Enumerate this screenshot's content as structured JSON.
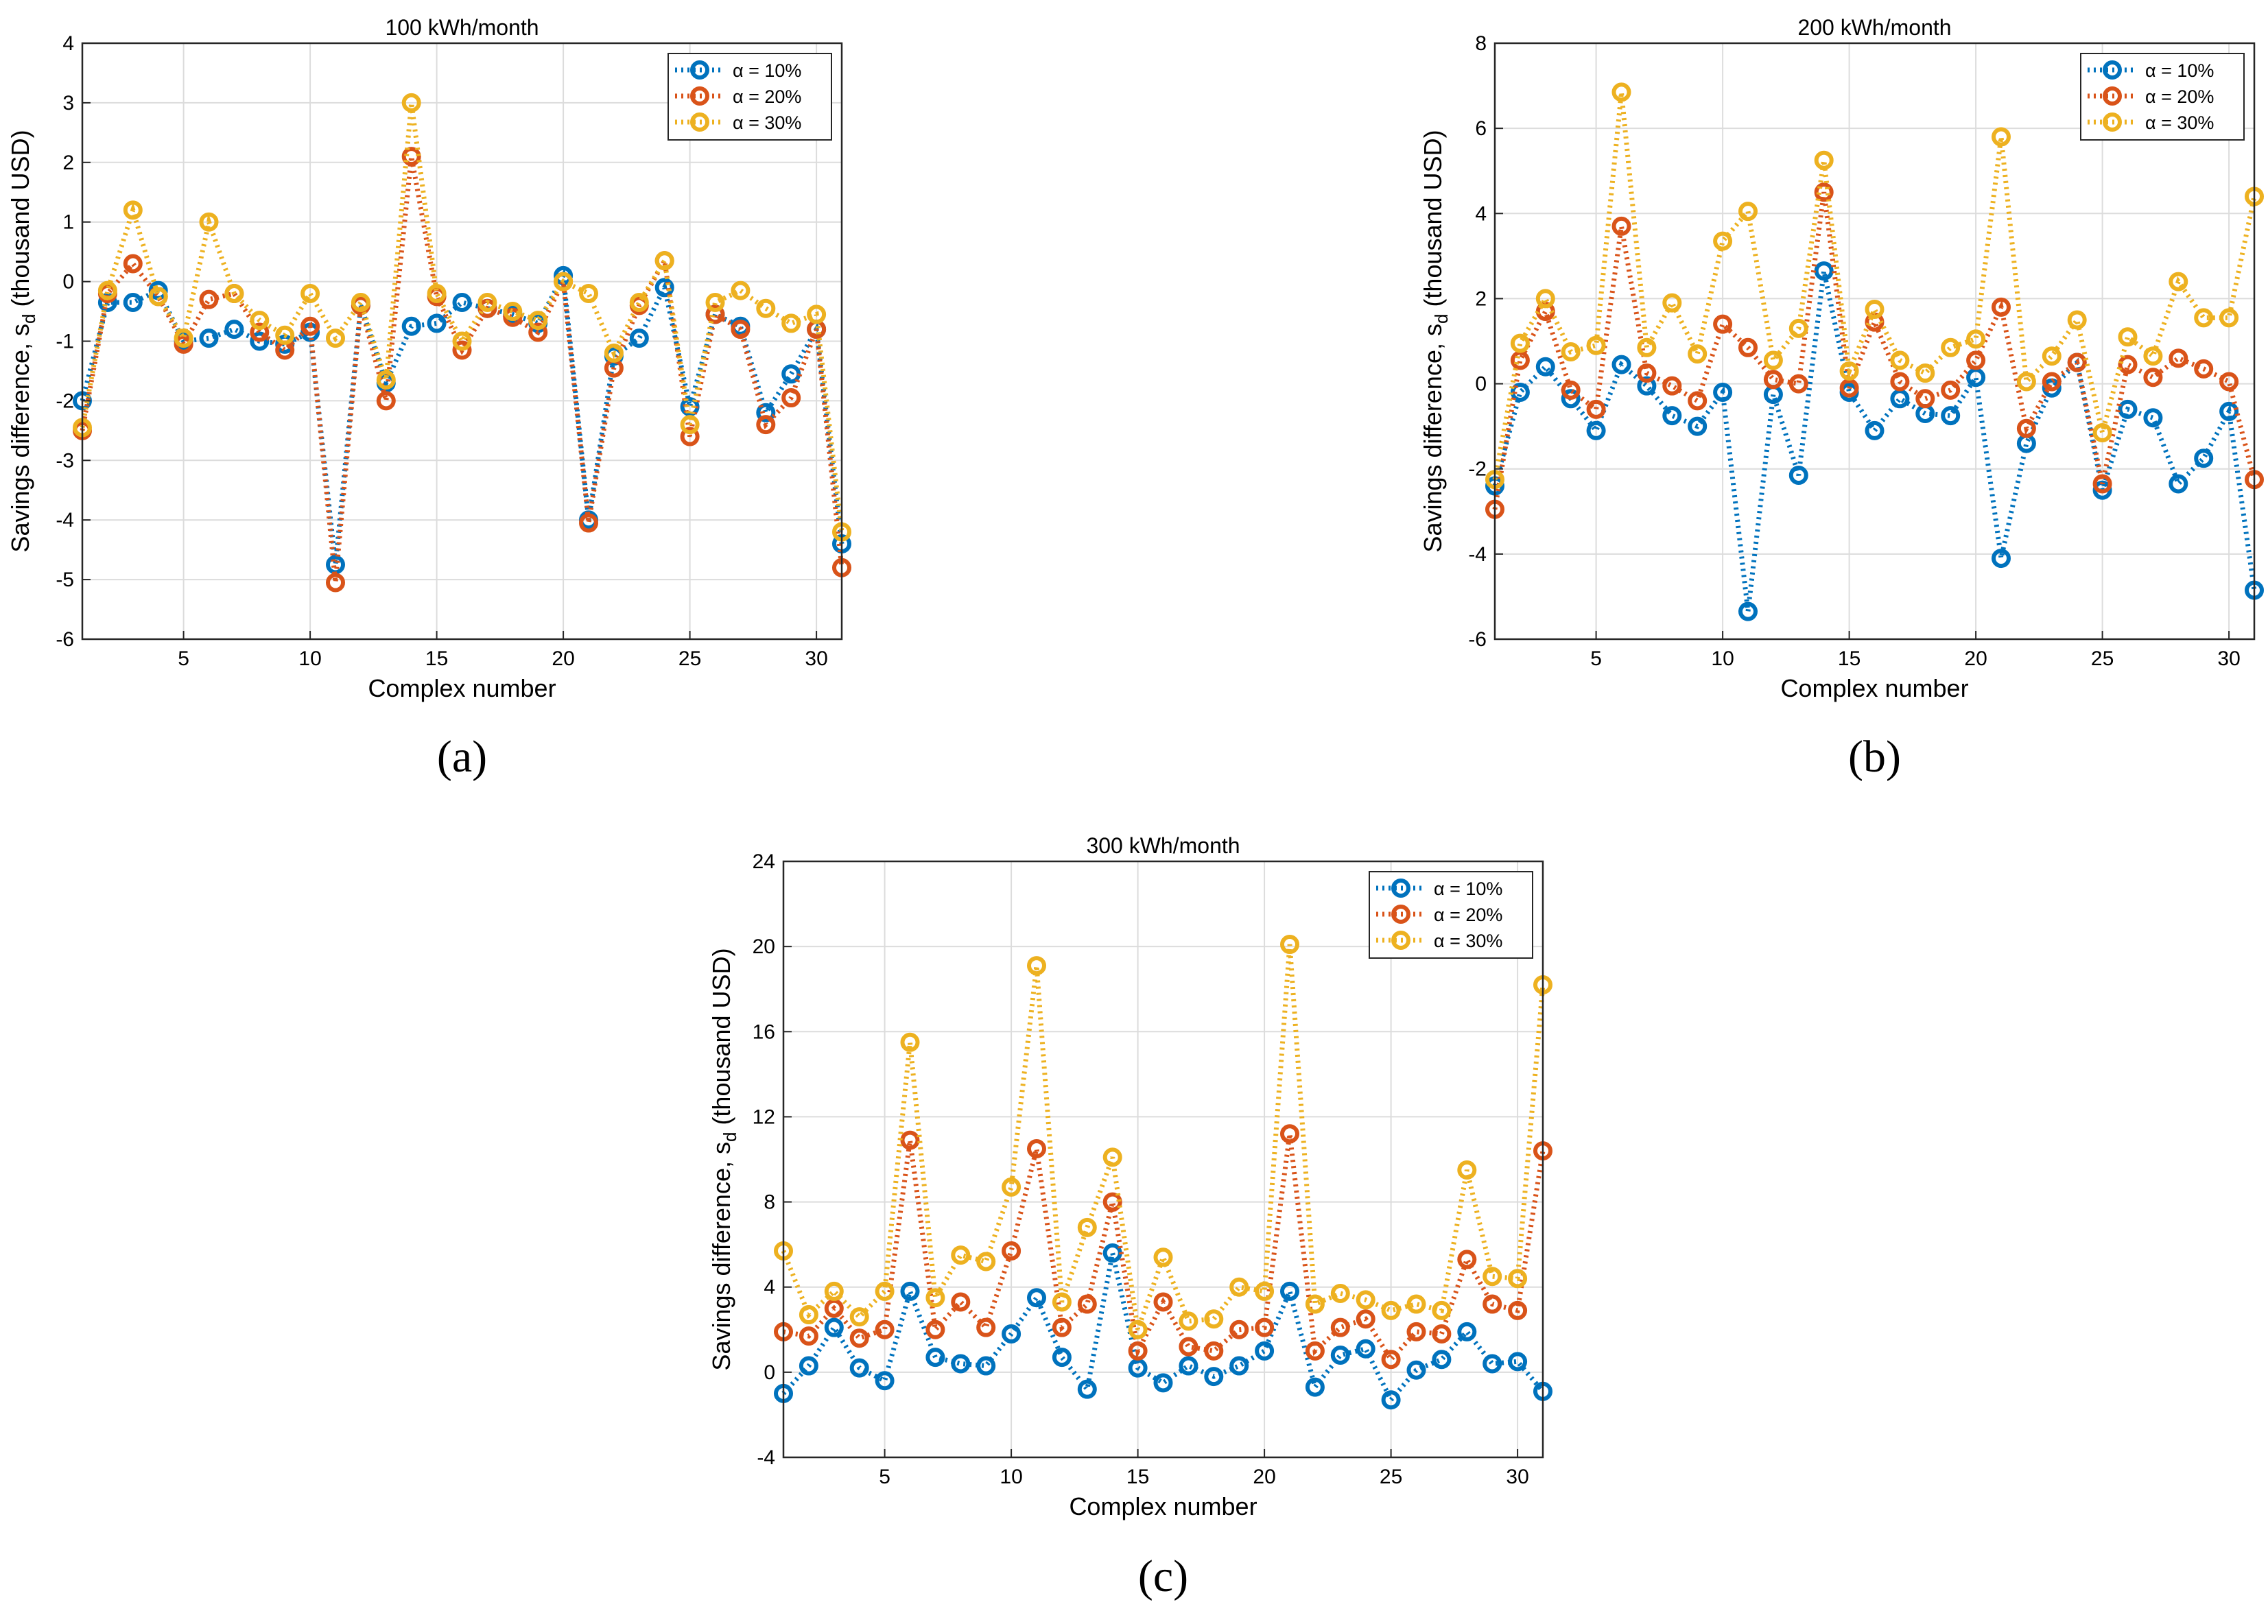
{
  "colors": {
    "a10": "#0072BD",
    "a20": "#D95319",
    "a30": "#EDB120",
    "grid": "#DCDCDC"
  },
  "chart_data": [
    {
      "type": "line",
      "panel_label": "(a)",
      "title": "100 kWh/month",
      "xlabel": "Complex number",
      "ylabel": "Savings difference, s",
      "ylabel_sub": "d",
      "ylabel_suffix": " (thousand USD)",
      "xlim": [
        1,
        31
      ],
      "ylim": [
        -6,
        4
      ],
      "xticks": [
        5,
        10,
        15,
        20,
        25,
        30
      ],
      "yticks": [
        -6,
        -5,
        -4,
        -3,
        -2,
        -1,
        0,
        1,
        2,
        3,
        4
      ],
      "grid": true,
      "legend": "top-right",
      "x": [
        1,
        2,
        3,
        4,
        5,
        6,
        7,
        8,
        9,
        10,
        11,
        12,
        13,
        14,
        15,
        16,
        17,
        18,
        19,
        20,
        21,
        22,
        23,
        24,
        25,
        26,
        27,
        28,
        29,
        30,
        31
      ],
      "series": [
        {
          "name": "α = 10%",
          "color_key": "a10",
          "values": [
            -2.0,
            -0.35,
            -0.35,
            -0.15,
            -1.0,
            -0.95,
            -0.8,
            -1.0,
            -1.05,
            -0.85,
            -4.75,
            -0.4,
            -1.7,
            -0.75,
            -0.7,
            -0.35,
            -0.45,
            -0.55,
            -0.7,
            0.1,
            -4.0,
            -1.25,
            -0.95,
            -0.1,
            -2.1,
            -0.55,
            -0.75,
            -2.2,
            -1.55,
            -0.8,
            -4.4
          ]
        },
        {
          "name": "α = 20%",
          "color_key": "a20",
          "values": [
            -2.5,
            -0.2,
            0.3,
            -0.25,
            -1.05,
            -0.3,
            -0.2,
            -0.85,
            -1.15,
            -0.75,
            -5.05,
            -0.4,
            -2.0,
            2.1,
            -0.25,
            -1.15,
            -0.45,
            -0.6,
            -0.85,
            0.0,
            -4.05,
            -1.45,
            -0.4,
            0.35,
            -2.6,
            -0.55,
            -0.8,
            -2.4,
            -1.95,
            -0.8,
            -4.8
          ]
        },
        {
          "name": "α = 30%",
          "color_key": "a30",
          "values": [
            -2.45,
            -0.15,
            1.2,
            -0.25,
            -0.95,
            1.0,
            -0.2,
            -0.65,
            -0.9,
            -0.2,
            -0.95,
            -0.35,
            -1.65,
            3.0,
            -0.2,
            -1.0,
            -0.35,
            -0.5,
            -0.65,
            0.0,
            -0.2,
            -1.2,
            -0.35,
            0.35,
            -2.4,
            -0.35,
            -0.15,
            -0.45,
            -0.7,
            -0.55,
            -4.2
          ]
        }
      ]
    },
    {
      "type": "line",
      "panel_label": "(b)",
      "title": "200 kWh/month",
      "xlabel": "Complex number",
      "ylabel": "Savings difference, s",
      "ylabel_sub": "d",
      "ylabel_suffix": " (thousand USD)",
      "xlim": [
        1,
        31
      ],
      "ylim": [
        -6,
        8
      ],
      "xticks": [
        5,
        10,
        15,
        20,
        25,
        30
      ],
      "yticks": [
        -6,
        -4,
        -2,
        0,
        2,
        4,
        6,
        8
      ],
      "grid": true,
      "legend": "top-right",
      "x": [
        1,
        2,
        3,
        4,
        5,
        6,
        7,
        8,
        9,
        10,
        11,
        12,
        13,
        14,
        15,
        16,
        17,
        18,
        19,
        20,
        21,
        22,
        23,
        24,
        25,
        26,
        27,
        28,
        29,
        30,
        31
      ],
      "series": [
        {
          "name": "α = 10%",
          "color_key": "a10",
          "values": [
            -2.4,
            -0.2,
            0.4,
            -0.35,
            -1.1,
            0.45,
            -0.05,
            -0.75,
            -1.0,
            -0.2,
            -5.35,
            -0.25,
            -2.15,
            2.65,
            -0.2,
            -1.1,
            -0.35,
            -0.7,
            -0.75,
            0.15,
            -4.1,
            -1.4,
            -0.1,
            0.5,
            -2.5,
            -0.6,
            -0.8,
            -2.35,
            -1.75,
            -0.65,
            -4.85
          ]
        },
        {
          "name": "α = 20%",
          "color_key": "a20",
          "values": [
            -2.95,
            0.55,
            1.7,
            -0.15,
            -0.6,
            3.7,
            0.25,
            -0.05,
            -0.4,
            1.4,
            0.85,
            0.1,
            0.0,
            4.5,
            -0.1,
            1.45,
            0.05,
            -0.35,
            -0.15,
            0.55,
            1.8,
            -1.05,
            0.05,
            0.5,
            -2.35,
            0.45,
            0.15,
            0.6,
            0.35,
            0.05,
            -2.25
          ]
        },
        {
          "name": "α = 30%",
          "color_key": "a30",
          "values": [
            -2.25,
            0.95,
            2.0,
            0.75,
            0.9,
            6.85,
            0.85,
            1.9,
            0.7,
            3.35,
            4.05,
            0.55,
            1.3,
            5.25,
            0.3,
            1.75,
            0.55,
            0.25,
            0.85,
            1.05,
            5.8,
            0.05,
            0.65,
            1.5,
            -1.15,
            1.1,
            0.65,
            2.4,
            1.55,
            1.55,
            4.4
          ]
        }
      ]
    },
    {
      "type": "line",
      "panel_label": "(c)",
      "title": "300 kWh/month",
      "xlabel": "Complex number",
      "ylabel": "Savings difference, s",
      "ylabel_sub": "d",
      "ylabel_suffix": " (thousand USD)",
      "xlim": [
        1,
        31
      ],
      "ylim": [
        -4,
        24
      ],
      "xticks": [
        5,
        10,
        15,
        20,
        25,
        30
      ],
      "yticks": [
        -4,
        0,
        4,
        8,
        12,
        16,
        20,
        24
      ],
      "grid": true,
      "legend": "top-right",
      "x": [
        1,
        2,
        3,
        4,
        5,
        6,
        7,
        8,
        9,
        10,
        11,
        12,
        13,
        14,
        15,
        16,
        17,
        18,
        19,
        20,
        21,
        22,
        23,
        24,
        25,
        26,
        27,
        28,
        29,
        30,
        31
      ],
      "series": [
        {
          "name": "α = 10%",
          "color_key": "a10",
          "values": [
            -1.0,
            0.3,
            2.1,
            0.2,
            -0.4,
            3.8,
            0.7,
            0.4,
            0.3,
            1.8,
            3.5,
            0.7,
            -0.8,
            5.6,
            0.2,
            -0.5,
            0.3,
            -0.2,
            0.3,
            1.0,
            3.8,
            -0.7,
            0.8,
            1.1,
            -1.3,
            0.1,
            0.6,
            1.9,
            0.4,
            0.5,
            -0.9
          ]
        },
        {
          "name": "α = 20%",
          "color_key": "a20",
          "values": [
            1.9,
            1.7,
            3.0,
            1.6,
            2.0,
            10.9,
            2.0,
            3.3,
            2.1,
            5.7,
            10.5,
            2.1,
            3.2,
            8.0,
            1.0,
            3.3,
            1.2,
            1.0,
            2.0,
            2.1,
            11.2,
            1.0,
            2.1,
            2.5,
            0.6,
            1.9,
            1.8,
            5.3,
            3.2,
            2.9,
            10.4
          ]
        },
        {
          "name": "α = 30%",
          "color_key": "a30",
          "values": [
            5.7,
            2.7,
            3.8,
            2.6,
            3.8,
            15.5,
            3.5,
            5.5,
            5.2,
            8.7,
            19.1,
            3.3,
            6.8,
            10.1,
            2.0,
            5.4,
            2.4,
            2.5,
            4.0,
            3.8,
            20.1,
            3.2,
            3.7,
            3.4,
            2.9,
            3.2,
            2.9,
            9.5,
            4.5,
            4.4,
            18.2
          ]
        }
      ]
    }
  ]
}
